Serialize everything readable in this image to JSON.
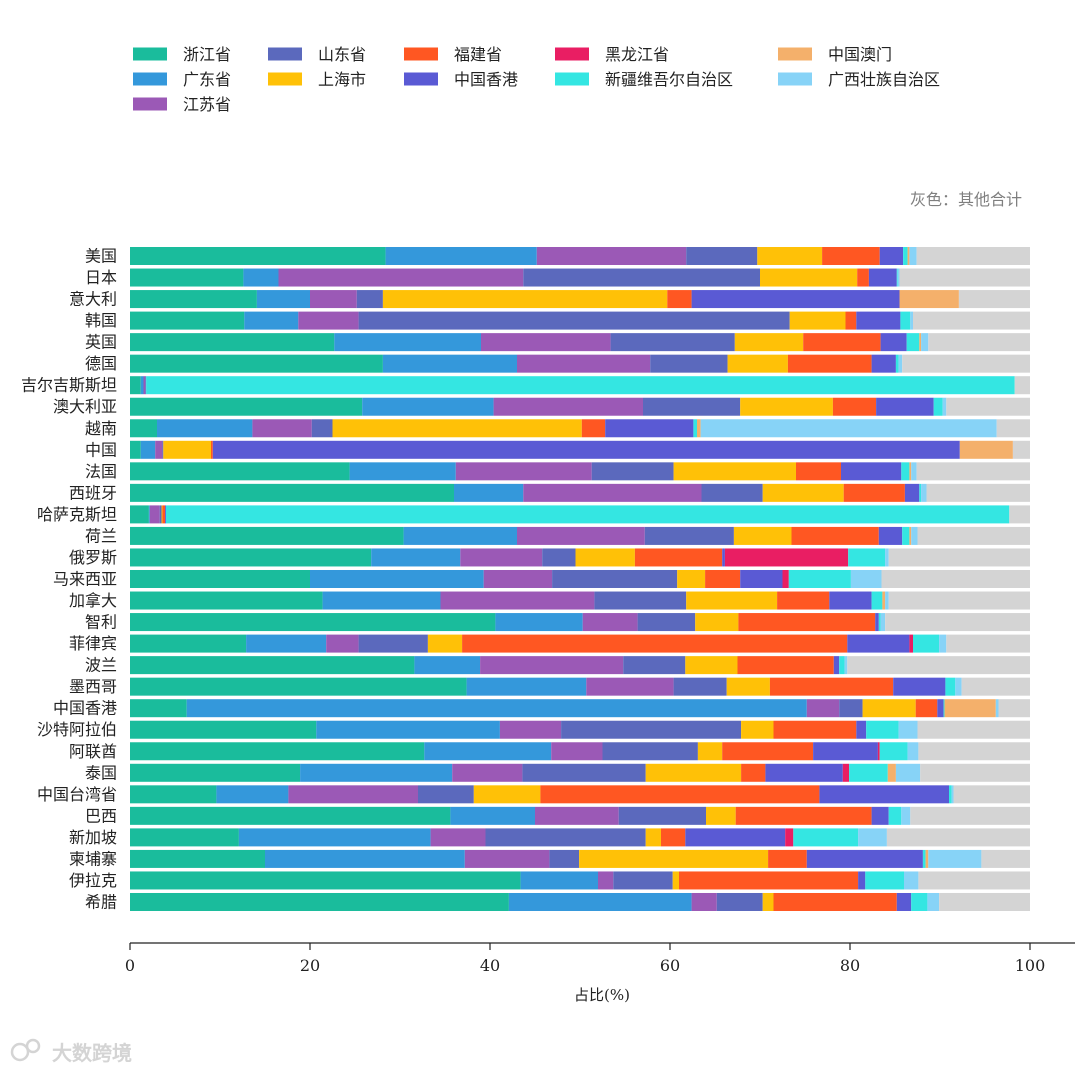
{
  "chart_data": {
    "type": "bar",
    "orientation": "horizontal",
    "stacked": true,
    "categories": [
      "美国",
      "日本",
      "意大利",
      "韩国",
      "英国",
      "德国",
      "吉尔吉斯斯坦",
      "澳大利亚",
      "越南",
      "中国",
      "法国",
      "西班牙",
      "哈萨克斯坦",
      "荷兰",
      "俄罗斯",
      "马来西亚",
      "加拿大",
      "智利",
      "菲律宾",
      "波兰",
      "墨西哥",
      "中国香港",
      "沙特阿拉伯",
      "阿联酋",
      "泰国",
      "中国台湾省",
      "巴西",
      "新加坡",
      "柬埔寨",
      "伊拉克",
      "希腊"
    ],
    "series": [
      {
        "name": "浙江省",
        "color": "#1abc9c",
        "values": [
          28.4,
          12.6,
          14.1,
          12.7,
          22.7,
          28.1,
          1.2,
          25.8,
          3.0,
          1.2,
          24.4,
          36.0,
          2.1,
          30.4,
          26.8,
          20.0,
          21.4,
          40.6,
          12.9,
          31.6,
          37.4,
          6.3,
          20.7,
          32.7,
          18.9,
          9.6,
          35.6,
          12.1,
          15.0,
          43.4,
          42.1
        ]
      },
      {
        "name": "广东省",
        "color": "#3498db",
        "values": [
          16.8,
          3.9,
          5.9,
          6.0,
          16.3,
          14.9,
          0.3,
          14.6,
          10.6,
          1.6,
          11.8,
          7.7,
          0.1,
          12.6,
          9.9,
          19.3,
          13.1,
          9.7,
          8.9,
          7.3,
          13.3,
          68.9,
          20.4,
          14.1,
          16.9,
          8.0,
          9.4,
          21.3,
          22.2,
          8.6,
          20.3
        ]
      },
      {
        "name": "江苏省",
        "color": "#9b59b6",
        "values": [
          16.6,
          27.2,
          5.2,
          6.7,
          14.4,
          14.8,
          0.2,
          16.6,
          6.6,
          0.8,
          15.1,
          19.8,
          1.1,
          14.2,
          9.1,
          7.6,
          17.1,
          6.1,
          3.6,
          15.9,
          9.7,
          3.6,
          6.8,
          5.7,
          7.8,
          14.4,
          9.3,
          6.1,
          9.4,
          1.7,
          2.8
        ]
      },
      {
        "name": "山东省",
        "color": "#5b69bd",
        "values": [
          7.9,
          26.3,
          2.9,
          47.9,
          13.8,
          8.6,
          0.1,
          10.8,
          2.3,
          0.1,
          9.1,
          6.8,
          0.2,
          9.9,
          3.7,
          13.9,
          10.2,
          6.4,
          7.7,
          6.9,
          5.9,
          2.6,
          20.0,
          10.6,
          13.7,
          6.2,
          9.7,
          17.8,
          3.3,
          6.6,
          5.1
        ]
      },
      {
        "name": "上海市",
        "color": "#ffc107",
        "values": [
          7.2,
          10.8,
          31.6,
          6.2,
          7.6,
          6.7,
          0.0,
          10.3,
          27.7,
          5.3,
          13.6,
          9.0,
          0.1,
          6.4,
          6.6,
          3.1,
          10.1,
          4.8,
          3.8,
          5.8,
          4.8,
          5.9,
          3.6,
          2.7,
          10.6,
          7.4,
          3.3,
          1.7,
          21.0,
          0.7,
          1.2
        ]
      },
      {
        "name": "福建省",
        "color": "#ff5722",
        "values": [
          6.4,
          1.3,
          2.7,
          1.2,
          8.6,
          9.3,
          0.0,
          4.8,
          2.6,
          0.2,
          5.0,
          6.8,
          0.3,
          9.7,
          9.7,
          3.9,
          5.8,
          15.2,
          42.8,
          10.7,
          13.7,
          2.4,
          9.2,
          10.1,
          2.7,
          31.0,
          15.1,
          2.7,
          4.3,
          19.9,
          13.7
        ]
      },
      {
        "name": "中国香港",
        "color": "#5a5ad4",
        "values": [
          2.6,
          3.1,
          23.1,
          4.9,
          2.9,
          2.7,
          0.0,
          6.4,
          9.8,
          83.0,
          6.7,
          1.6,
          0.1,
          2.6,
          0.3,
          4.7,
          4.7,
          0.4,
          6.9,
          0.6,
          5.8,
          0.7,
          1.1,
          7.2,
          8.6,
          14.4,
          1.9,
          11.1,
          12.9,
          0.8,
          1.6
        ]
      },
      {
        "name": "黑龙江省",
        "color": "#e91e63",
        "values": [
          0.0,
          0.0,
          0.0,
          0.0,
          0.0,
          0.0,
          0.0,
          0.0,
          0.0,
          0.0,
          0.0,
          0.0,
          0.0,
          0.0,
          13.7,
          0.7,
          0.0,
          0.0,
          0.4,
          0.0,
          0.0,
          0.0,
          0.0,
          0.2,
          0.7,
          0.0,
          0.0,
          0.9,
          0.0,
          0.0,
          0.0
        ]
      },
      {
        "name": "新疆维吾尔自治区",
        "color": "#34e6e2",
        "values": [
          0.5,
          0.1,
          0.0,
          1.1,
          1.4,
          0.3,
          96.5,
          1.0,
          0.4,
          0.0,
          0.9,
          0.2,
          93.7,
          0.8,
          4.1,
          6.9,
          1.2,
          0.2,
          2.9,
          0.6,
          1.1,
          0.1,
          3.6,
          3.1,
          4.3,
          0.3,
          1.4,
          7.2,
          0.3,
          4.3,
          1.8
        ]
      },
      {
        "name": "中国澳门",
        "color": "#f4b06b",
        "values": [
          0.2,
          0.0,
          6.6,
          0.0,
          0.2,
          0.0,
          0.0,
          0.0,
          0.4,
          5.9,
          0.2,
          0.0,
          0.0,
          0.2,
          0.0,
          0.0,
          0.3,
          0.0,
          0.0,
          0.0,
          0.0,
          5.7,
          0.0,
          0.0,
          0.9,
          0.0,
          0.0,
          0.0,
          0.3,
          0.0,
          0.0
        ]
      },
      {
        "name": "广西壮族自治区",
        "color": "#87d3f7",
        "values": [
          0.8,
          0.2,
          0.0,
          0.3,
          0.8,
          0.4,
          0.0,
          0.4,
          32.9,
          0.0,
          0.6,
          0.6,
          0.0,
          0.7,
          0.4,
          3.4,
          0.4,
          0.5,
          0.8,
          0.3,
          0.7,
          0.3,
          2.1,
          1.2,
          2.7,
          0.2,
          1.0,
          3.2,
          5.9,
          1.6,
          1.3
        ]
      }
    ],
    "remainder_color": "#d4d4d4",
    "annotation": "灰色：其他合计",
    "xlabel": "占比(%)",
    "xlim": [
      0,
      105
    ],
    "xticks": [
      0,
      20,
      40,
      60,
      80,
      100
    ],
    "legend_position": "top-left",
    "grid": false
  },
  "watermark": "大数跨境"
}
